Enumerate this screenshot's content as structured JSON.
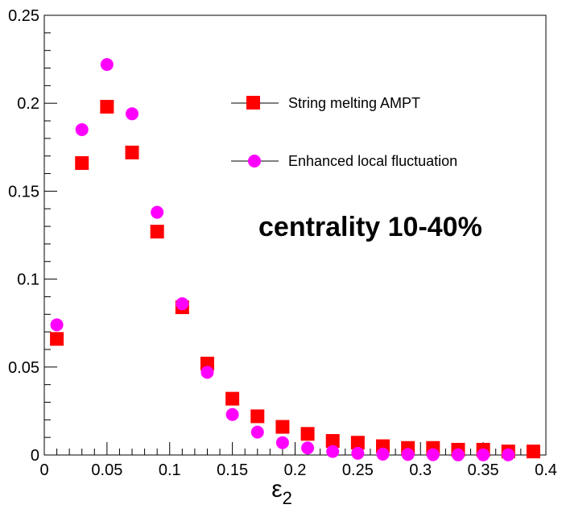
{
  "chart_data": {
    "type": "scatter",
    "title": "",
    "xlabel": "ε2",
    "xlabel_main": "ε",
    "xlabel_sub": "2",
    "ylabel": "",
    "xlim": [
      0,
      0.4
    ],
    "ylim": [
      0,
      0.25
    ],
    "x_ticks": [
      "0",
      "0.05",
      "0.1",
      "0.15",
      "0.2",
      "0.25",
      "0.3",
      "0.35",
      "0.4"
    ],
    "y_ticks": [
      "0",
      "0.05",
      "0.1",
      "0.15",
      "0.2",
      "0.25"
    ],
    "grid": false,
    "legend_position": "top-right",
    "annotation": "centrality 10-40%",
    "series": [
      {
        "name": "String melting AMPT",
        "marker": "square",
        "color": "#ff0000",
        "x": [
          0.01,
          0.03,
          0.05,
          0.07,
          0.09,
          0.11,
          0.13,
          0.15,
          0.17,
          0.19,
          0.21,
          0.23,
          0.25,
          0.27,
          0.29,
          0.31,
          0.33,
          0.35,
          0.37,
          0.39
        ],
        "y": [
          0.066,
          0.166,
          0.198,
          0.172,
          0.127,
          0.084,
          0.052,
          0.032,
          0.022,
          0.016,
          0.012,
          0.008,
          0.007,
          0.005,
          0.004,
          0.004,
          0.003,
          0.003,
          0.002,
          0.002
        ]
      },
      {
        "name": "Enhanced local fluctuation",
        "marker": "circle",
        "color": "#ff00ff",
        "x": [
          0.01,
          0.03,
          0.05,
          0.07,
          0.09,
          0.11,
          0.13,
          0.15,
          0.17,
          0.19,
          0.21,
          0.23,
          0.25,
          0.27,
          0.29,
          0.31,
          0.33,
          0.35,
          0.37
        ],
        "y": [
          0.074,
          0.185,
          0.222,
          0.194,
          0.138,
          0.086,
          0.047,
          0.023,
          0.013,
          0.007,
          0.004,
          0.002,
          0.001,
          0.0005,
          0.0003,
          0.0002,
          0.0001,
          0.0001,
          0.0001
        ]
      }
    ]
  }
}
